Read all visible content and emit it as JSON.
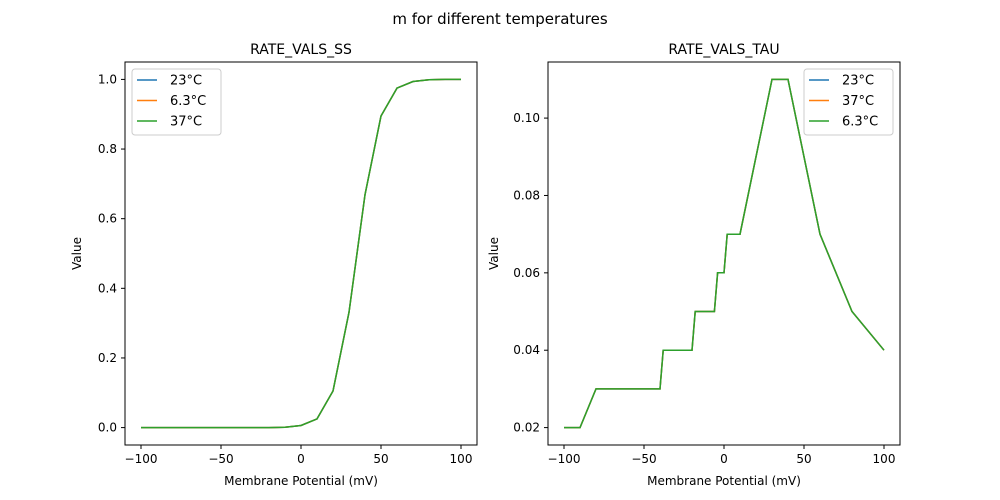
{
  "suptitle": "m for different temperatures",
  "colors": {
    "blue": "#1f77b4",
    "orange": "#ff7f0e",
    "green": "#2ca02c"
  },
  "chart_data": [
    {
      "type": "line",
      "title": "RATE_VALS_SS",
      "xlabel": "Membrane Potential (mV)",
      "ylabel": "Value",
      "xlim": [
        -110,
        110
      ],
      "ylim": [
        -0.05,
        1.05
      ],
      "xticks": [
        -100,
        -50,
        0,
        50,
        100
      ],
      "xtick_labels": [
        "−100",
        "−50",
        "0",
        "50",
        "100"
      ],
      "yticks": [
        0.0,
        0.2,
        0.4,
        0.6,
        0.8,
        1.0
      ],
      "ytick_labels": [
        "0.0",
        "0.2",
        "0.4",
        "0.6",
        "0.8",
        "1.0"
      ],
      "legend_position": "top-left",
      "x": [
        -100,
        -90,
        -80,
        -70,
        -60,
        -50,
        -40,
        -30,
        -20,
        -10,
        0,
        10,
        20,
        30,
        40,
        50,
        60,
        70,
        80,
        90,
        100
      ],
      "series": [
        {
          "name": "23°C",
          "color": "#1f77b4",
          "values": [
            0,
            0,
            0,
            0,
            0,
            0,
            0,
            0,
            0,
            0.001,
            0.006,
            0.025,
            0.105,
            0.331,
            0.669,
            0.895,
            0.975,
            0.994,
            0.999,
            1.0,
            1.0
          ]
        },
        {
          "name": "6.3°C",
          "color": "#ff7f0e",
          "values": [
            0,
            0,
            0,
            0,
            0,
            0,
            0,
            0,
            0,
            0.001,
            0.006,
            0.025,
            0.105,
            0.331,
            0.669,
            0.895,
            0.975,
            0.994,
            0.999,
            1.0,
            1.0
          ]
        },
        {
          "name": "37°C",
          "color": "#2ca02c",
          "values": [
            0,
            0,
            0,
            0,
            0,
            0,
            0,
            0,
            0,
            0.001,
            0.006,
            0.025,
            0.105,
            0.331,
            0.669,
            0.895,
            0.975,
            0.994,
            0.999,
            1.0,
            1.0
          ]
        }
      ]
    },
    {
      "type": "line",
      "title": "RATE_VALS_TAU",
      "xlabel": "Membrane Potential (mV)",
      "ylabel": "Value",
      "xlim": [
        -110,
        110
      ],
      "ylim": [
        0.0155,
        0.1145
      ],
      "xticks": [
        -100,
        -50,
        0,
        50,
        100
      ],
      "xtick_labels": [
        "−100",
        "−50",
        "0",
        "50",
        "100"
      ],
      "yticks": [
        0.02,
        0.04,
        0.06,
        0.08,
        0.1
      ],
      "ytick_labels": [
        "0.02",
        "0.04",
        "0.06",
        "0.08",
        "0.10"
      ],
      "legend_position": "top-right",
      "x": [
        -100,
        -90,
        -80,
        -40,
        -38,
        -20,
        -18,
        -6,
        -4,
        0,
        2,
        10,
        30,
        40,
        60,
        80,
        100
      ],
      "series": [
        {
          "name": "23°C",
          "color": "#1f77b4",
          "values": [
            0.02,
            0.02,
            0.03,
            0.03,
            0.04,
            0.04,
            0.05,
            0.05,
            0.06,
            0.06,
            0.07,
            0.07,
            0.11,
            0.11,
            0.07,
            0.05,
            0.04
          ]
        },
        {
          "name": "37°C",
          "color": "#ff7f0e",
          "values": [
            0.02,
            0.02,
            0.03,
            0.03,
            0.04,
            0.04,
            0.05,
            0.05,
            0.06,
            0.06,
            0.07,
            0.07,
            0.11,
            0.11,
            0.07,
            0.05,
            0.04
          ]
        },
        {
          "name": "6.3°C",
          "color": "#2ca02c",
          "values": [
            0.02,
            0.02,
            0.03,
            0.03,
            0.04,
            0.04,
            0.05,
            0.05,
            0.06,
            0.06,
            0.07,
            0.07,
            0.11,
            0.11,
            0.07,
            0.05,
            0.04
          ]
        }
      ]
    }
  ]
}
